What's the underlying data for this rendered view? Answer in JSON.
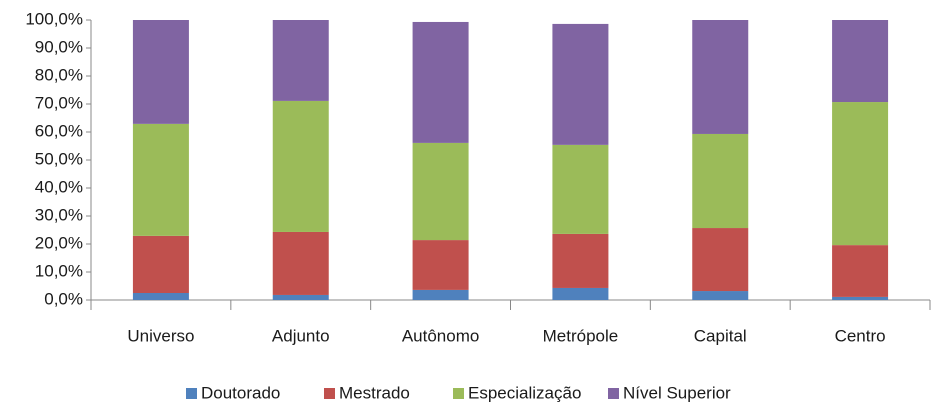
{
  "chart_data": {
    "type": "stacked_bar",
    "categories": [
      "Universo",
      "Adjunto",
      "Autônomo",
      "Metrópole",
      "Capital",
      "Centro"
    ],
    "series": [
      {
        "name": "Doutorado",
        "color": "#4f81bd",
        "values": [
          2.5,
          1.8,
          3.6,
          4.3,
          3.2,
          1.1
        ]
      },
      {
        "name": "Mestrado",
        "color": "#c0504d",
        "values": [
          20.4,
          22.5,
          17.8,
          19.3,
          22.5,
          18.5
        ]
      },
      {
        "name": "Especialização",
        "color": "#9bbb59",
        "values": [
          40.0,
          46.8,
          34.7,
          31.8,
          33.6,
          51.1
        ]
      },
      {
        "name": "Nível Superior",
        "color": "#8064a2",
        "values": [
          37.1,
          28.9,
          43.2,
          43.2,
          40.7,
          29.3
        ]
      }
    ],
    "ylim": [
      0,
      100
    ],
    "yticks": [
      {
        "value": 0,
        "label": "0,0%"
      },
      {
        "value": 10,
        "label": "10,0%"
      },
      {
        "value": 20,
        "label": "20,0%"
      },
      {
        "value": 30,
        "label": "30,0%"
      },
      {
        "value": 40,
        "label": "40,0%"
      },
      {
        "value": 50,
        "label": "50,0%"
      },
      {
        "value": 60,
        "label": "60,0%"
      },
      {
        "value": 70,
        "label": "70,0%"
      },
      {
        "value": 80,
        "label": "80,0%"
      },
      {
        "value": 90,
        "label": "90,0%"
      },
      {
        "value": 100,
        "label": "100,0%"
      }
    ],
    "grid": false,
    "legend": "bottom"
  }
}
